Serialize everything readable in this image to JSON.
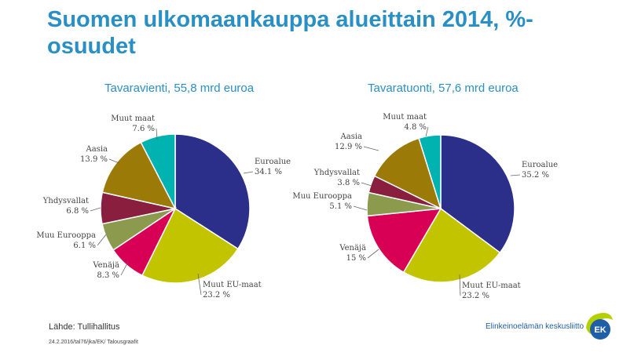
{
  "title": "Suomen ulkomaankauppa alueittain 2014, %-osuudet",
  "source": "Lähde: Tullihallitus",
  "footnote": "24.2.2016/tal76/jka/EK/ Talousgraafit",
  "organization": "Elinkeinoelämän keskusliitto",
  "logo_text": "EK",
  "colors": {
    "title": "#2a8fc4",
    "Euroalue": "#2b2f8a",
    "Muut EU-maat": "#c2c400",
    "Venäjä": "#d80055",
    "Muu Eurooppa": "#8c9a4e",
    "Yhdysvallat": "#8a1e3e",
    "Aasia": "#9c7a08",
    "Muut maat": "#00b2b0"
  },
  "chart_data": [
    {
      "type": "pie",
      "title": "Tavaravienti, 55,8 mrd euroa",
      "categories": [
        "Euroalue",
        "Muut EU-maat",
        "Venäjä",
        "Muu Eurooppa",
        "Yhdysvallat",
        "Aasia",
        "Muut maat"
      ],
      "values": [
        34.1,
        23.2,
        8.3,
        6.1,
        6.8,
        13.9,
        7.6
      ],
      "labels": [
        "34.1 %",
        "23.2 %",
        "8.3 %",
        "6.1 %",
        "6.8 %",
        "13.9 %",
        "7.6 %"
      ]
    },
    {
      "type": "pie",
      "title": "Tavaratuonti, 57,6 mrd euroa",
      "categories": [
        "Euroalue",
        "Muut EU-maat",
        "Venäjä",
        "Muu Eurooppa",
        "Yhdysvallat",
        "Aasia",
        "Muut maat"
      ],
      "values": [
        35.2,
        23.2,
        15,
        5.1,
        3.8,
        12.9,
        4.8
      ],
      "labels": [
        "35.2 %",
        "23.2 %",
        "15 %",
        "5.1 %",
        "3.8 %",
        "12.9 %",
        "4.8 %"
      ]
    }
  ]
}
